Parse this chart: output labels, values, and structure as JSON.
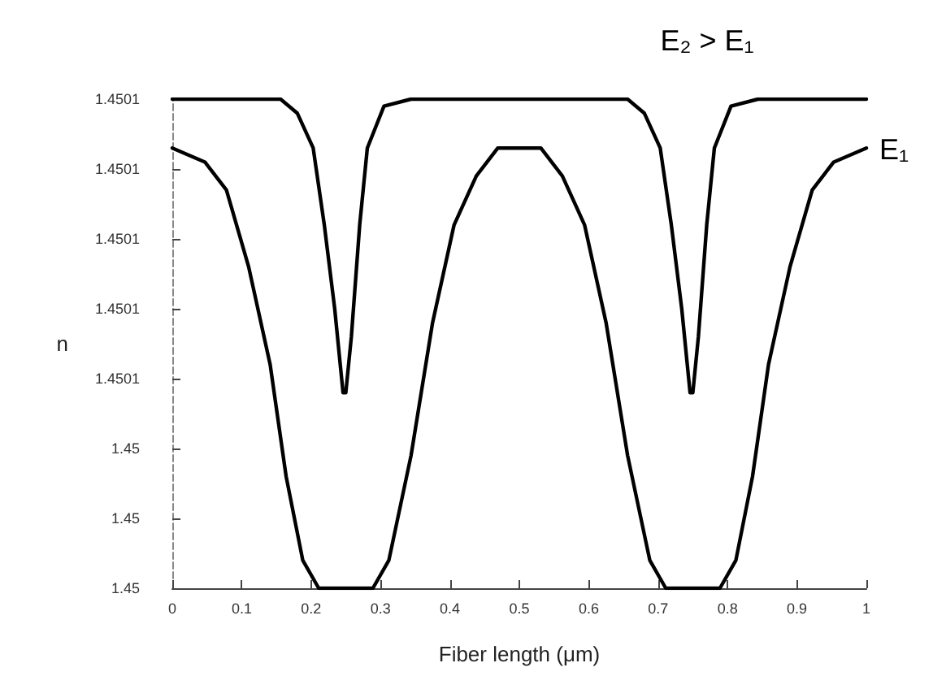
{
  "chart_data": {
    "type": "line",
    "xlabel": "Fiber length (μm)",
    "ylabel": "n",
    "xlim": [
      0,
      1
    ],
    "xticks": [
      0,
      0.1,
      0.2,
      0.3,
      0.4,
      0.5,
      0.6,
      0.7,
      0.8,
      0.9,
      1
    ],
    "ylim": [
      1.45002,
      1.45009
    ],
    "yticks": [
      {
        "value": 1.45002,
        "label": "1.45"
      },
      {
        "value": 1.45003,
        "label": "1.45"
      },
      {
        "value": 1.45004,
        "label": "1.45"
      },
      {
        "value": 1.45005,
        "label": "1.4501"
      },
      {
        "value": 1.45006,
        "label": "1.4501"
      },
      {
        "value": 1.45007,
        "label": "1.4501"
      },
      {
        "value": 1.45008,
        "label": "1.4501"
      },
      {
        "value": 1.45009,
        "label": "1.4501"
      }
    ],
    "grid": false,
    "legend": false,
    "marker": "none",
    "line_style": "solid",
    "series": [
      {
        "name": "E₂ > E₁",
        "color": "#000000",
        "x": [
          0,
          0.1,
          0.156,
          0.18,
          0.203,
          0.219,
          0.234,
          0.246,
          0.25,
          0.258,
          0.27,
          0.281,
          0.305,
          0.344,
          0.5,
          0.656,
          0.68,
          0.703,
          0.719,
          0.734,
          0.746,
          0.75,
          0.758,
          0.77,
          0.781,
          0.805,
          0.844,
          0.9,
          1
        ],
        "values": [
          1.45009,
          1.45009,
          1.45009,
          1.450088,
          1.450083,
          1.450072,
          1.45006,
          1.450048,
          1.450048,
          1.450056,
          1.450072,
          1.450083,
          1.450089,
          1.45009,
          1.45009,
          1.45009,
          1.450088,
          1.450083,
          1.450072,
          1.45006,
          1.450048,
          1.450048,
          1.450056,
          1.450072,
          1.450083,
          1.450089,
          1.45009,
          1.45009,
          1.45009
        ]
      },
      {
        "name": "E₁",
        "color": "#000000",
        "x": [
          0,
          0.047,
          0.078,
          0.11,
          0.141,
          0.164,
          0.188,
          0.211,
          0.25,
          0.289,
          0.312,
          0.344,
          0.375,
          0.406,
          0.438,
          0.469,
          0.5,
          0.531,
          0.562,
          0.594,
          0.625,
          0.656,
          0.688,
          0.711,
          0.75,
          0.789,
          0.812,
          0.836,
          0.859,
          0.89,
          0.922,
          0.953,
          1
        ],
        "values": [
          1.450083,
          1.450081,
          1.450077,
          1.450066,
          1.450052,
          1.450036,
          1.450024,
          1.45002,
          1.45002,
          1.45002,
          1.450024,
          1.450039,
          1.450058,
          1.450072,
          1.450079,
          1.450083,
          1.450083,
          1.450083,
          1.450079,
          1.450072,
          1.450058,
          1.450039,
          1.450024,
          1.45002,
          1.45002,
          1.45002,
          1.450024,
          1.450036,
          1.450052,
          1.450066,
          1.450077,
          1.450081,
          1.450083
        ]
      }
    ]
  }
}
